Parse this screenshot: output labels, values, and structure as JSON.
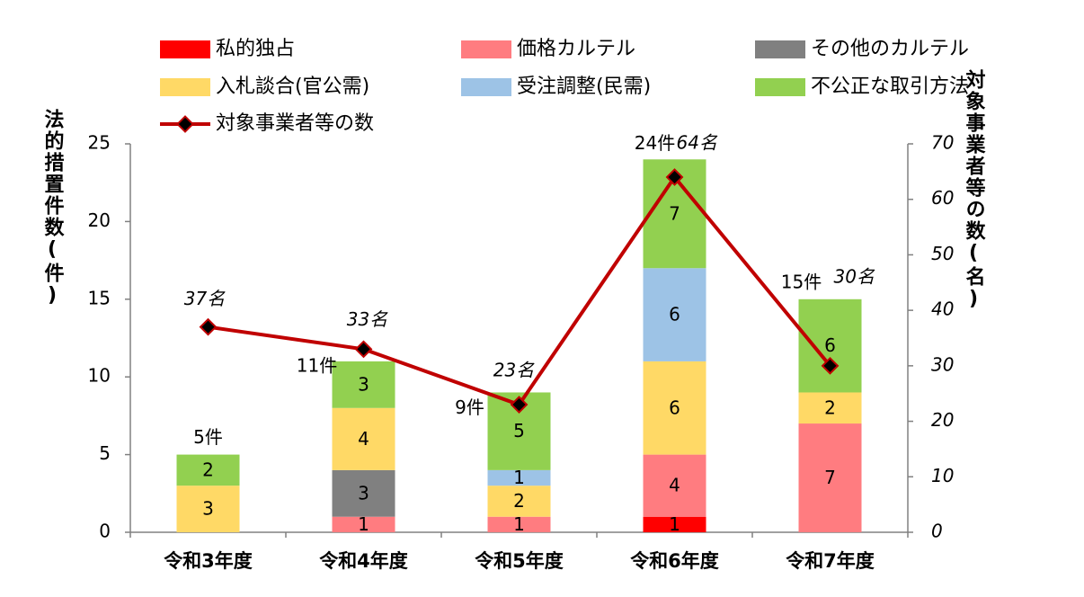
{
  "chart_data": {
    "type": "bar",
    "stacked": true,
    "categories": [
      "令和3年度",
      "令和4年度",
      "令和5年度",
      "令和6年度",
      "令和7年度"
    ],
    "series": [
      {
        "name": "私的独占",
        "color": "#ff0000",
        "values": [
          0,
          0,
          0,
          1,
          0
        ]
      },
      {
        "name": "価格カルテル",
        "color": "#ff7c80",
        "values": [
          0,
          1,
          1,
          4,
          7
        ]
      },
      {
        "name": "その他のカルテル",
        "color": "#808080",
        "values": [
          0,
          3,
          0,
          0,
          0
        ]
      },
      {
        "name": "入札談合(官公需)",
        "color": "#ffd966",
        "values": [
          3,
          4,
          2,
          6,
          2
        ]
      },
      {
        "name": "受注調整(民需)",
        "color": "#9dc3e6",
        "values": [
          0,
          0,
          1,
          6,
          0
        ]
      },
      {
        "name": "不公正な取引方法",
        "color": "#92d050",
        "values": [
          2,
          3,
          5,
          7,
          6
        ]
      }
    ],
    "line_series": {
      "name": "対象事業者等の数",
      "color": "#c00000",
      "axis": "right",
      "values": [
        37,
        33,
        23,
        64,
        30
      ],
      "labels": [
        "37名",
        "33名",
        "23名",
        "64名",
        "30名"
      ]
    },
    "totals": [
      "5件",
      "11件",
      "9件",
      "24件",
      "15件"
    ],
    "ylabel": "法的措置件数(件)",
    "ylabel_right": "対象事業者等の数(名)",
    "ylim": [
      0,
      25
    ],
    "ylim_right": [
      0,
      70
    ],
    "yticks": [
      0,
      5,
      10,
      15,
      20,
      25
    ],
    "yticks_right": [
      0,
      10,
      20,
      30,
      40,
      50,
      60,
      70
    ],
    "grid": false,
    "legend_position": "top"
  }
}
